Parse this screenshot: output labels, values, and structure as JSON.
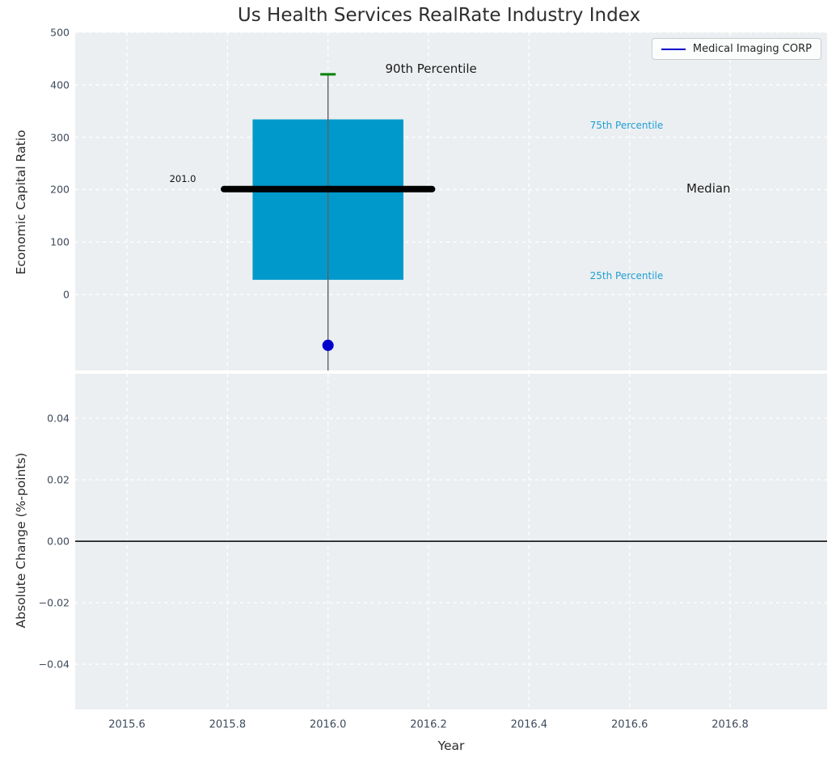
{
  "figure": {
    "title": "Us Health Services RealRate Industry Index",
    "background_color": "#ffffff",
    "axes_background_color": "#eceff1",
    "gridline_color": "#ffffff",
    "tick_label_color": "#3e4a5a"
  },
  "legend": {
    "label": "Medical Imaging CORP",
    "line_color": "#0000cd",
    "position": "upper right"
  },
  "chart_data": {
    "type": "box",
    "title": "Us Health Services RealRate Industry Index",
    "xlabel": "Year",
    "xlim": [
      2015.497,
      2016.993
    ],
    "grid": "white dashed on light gray background",
    "xticks": [
      {
        "value": 2015.6,
        "label": "2015.6"
      },
      {
        "value": 2015.8,
        "label": "2015.8"
      },
      {
        "value": 2016.0,
        "label": "2016.0"
      },
      {
        "value": 2016.2,
        "label": "2016.2"
      },
      {
        "value": 2016.4,
        "label": "2016.4"
      },
      {
        "value": 2016.6,
        "label": "2016.6"
      },
      {
        "value": 2016.8,
        "label": "2016.8"
      }
    ],
    "subplots": [
      {
        "name": "economic-capital-ratio",
        "ylabel": "Economic Capital Ratio",
        "ylim": [
          -145,
          500
        ],
        "yticks": [
          {
            "value": 0,
            "label": "0"
          },
          {
            "value": 100,
            "label": "100"
          },
          {
            "value": 200,
            "label": "200"
          },
          {
            "value": 300,
            "label": "300"
          },
          {
            "value": 400,
            "label": "400"
          },
          {
            "value": 500,
            "label": "500"
          }
        ],
        "box": {
          "x": 2016.0,
          "box_width_years": 0.3,
          "p90": 420,
          "p75": 334,
          "median": 201.0,
          "p25": 28,
          "whisker_low_clipped_below_axis": true,
          "median_label": "201.0",
          "median_line_span": [
            2015.793,
            2016.207
          ],
          "box_color": "#0099cc",
          "median_color": "#000000",
          "cap_color": "#008000",
          "whisker_color": "#606060"
        },
        "company_point": {
          "x": 2016.0,
          "value": -97,
          "color": "#0000cd",
          "radius": 7
        },
        "annotations": [
          {
            "text": "90th Percentile",
            "x": 2016.205,
            "y": 430,
            "color": "#1a1a1a",
            "size": 15
          },
          {
            "text": "75th Percentile",
            "x": 2016.594,
            "y": 323,
            "color": "#1d9fd4",
            "size": 12
          },
          {
            "text": "Median",
            "x": 2016.757,
            "y": 202,
            "color": "#1a1a1a",
            "size": 15
          },
          {
            "text": "25th Percentile",
            "x": 2016.594,
            "y": 35,
            "color": "#1d9fd4",
            "size": 12
          },
          {
            "text": "201.0",
            "x": 2015.711,
            "y": 221,
            "color": "#111111",
            "size": 11.5
          }
        ]
      },
      {
        "name": "absolute-change",
        "ylabel": "Absolute Change (%-points)",
        "ylim": [
          -0.0547,
          0.0545
        ],
        "yticks": [
          {
            "value": 0.04,
            "label": "0.04"
          },
          {
            "value": 0.02,
            "label": "0.02"
          },
          {
            "value": 0.0,
            "label": "0.00"
          },
          {
            "value": -0.02,
            "label": "−0.02"
          },
          {
            "value": -0.04,
            "label": "−0.04"
          }
        ],
        "zero_line": {
          "value": 0.0,
          "color": "#000000"
        }
      }
    ]
  }
}
